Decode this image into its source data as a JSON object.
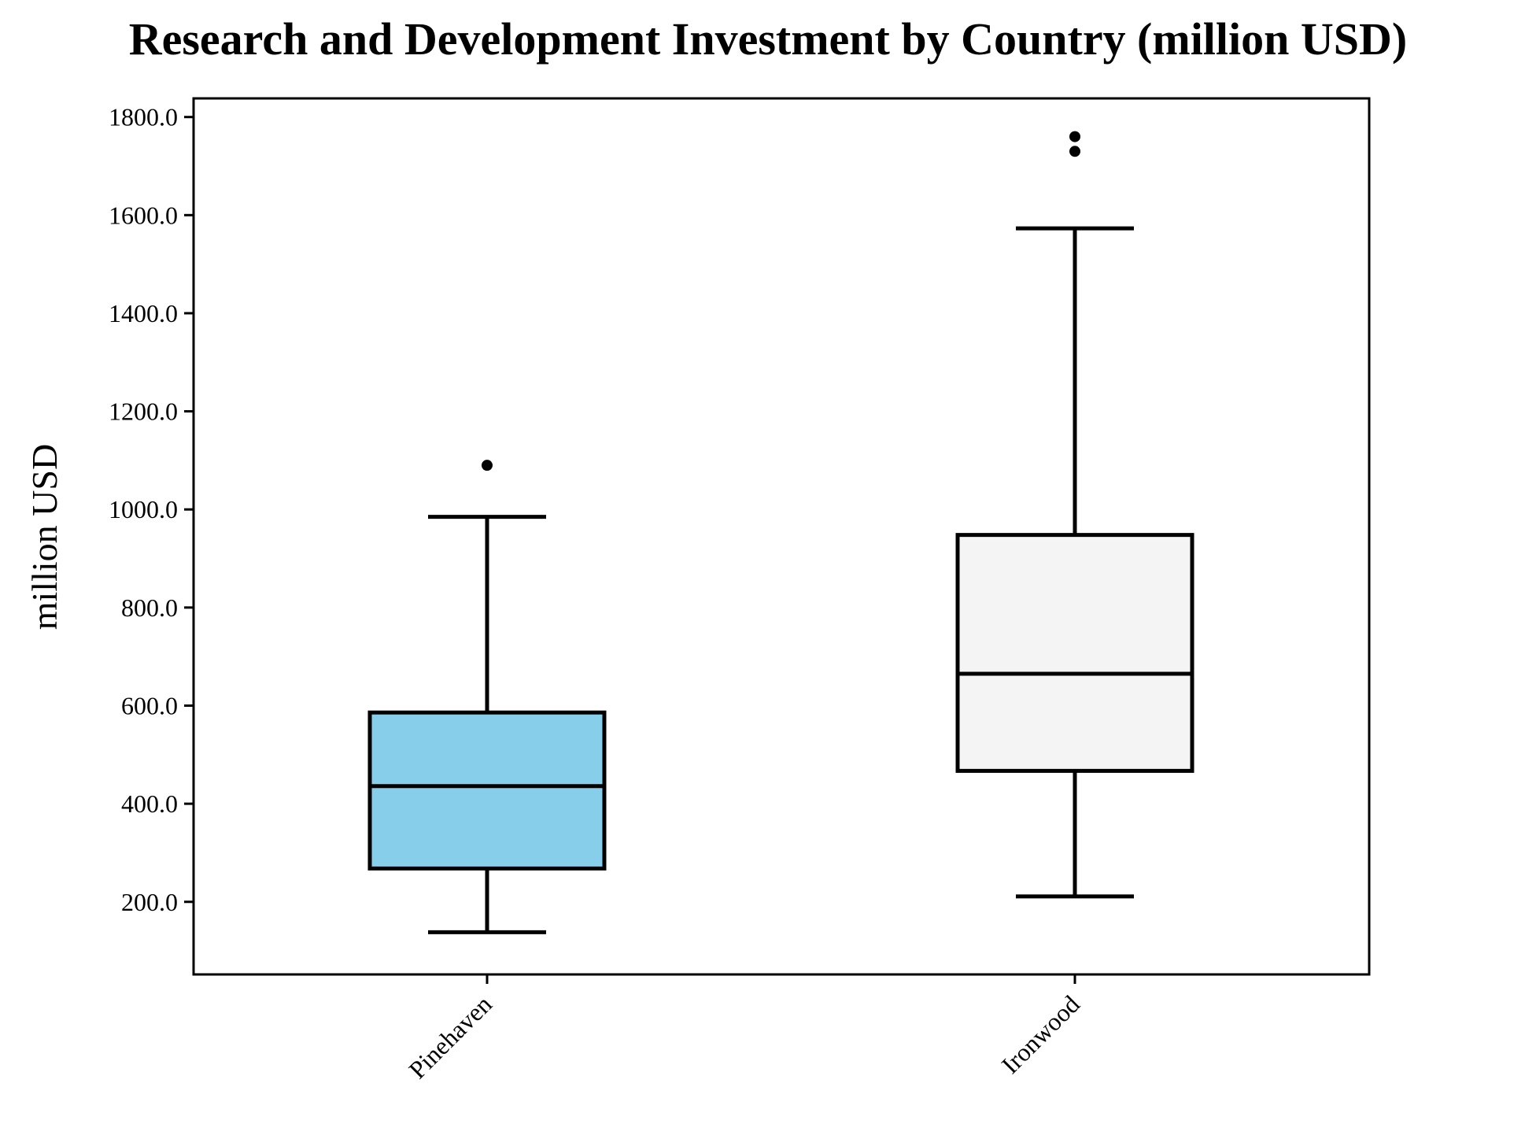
{
  "chart_data": {
    "type": "box",
    "title": "Research and Development Investment by Country (million USD)",
    "xlabel": "",
    "ylabel": "million USD",
    "ylim": [
      52,
      1838
    ],
    "yticks": [
      200,
      400,
      600,
      800,
      1000,
      1200,
      1400,
      1600,
      1800
    ],
    "ytick_labels": [
      "200.0",
      "400.0",
      "600.0",
      "800.0",
      "1000.0",
      "1200.0",
      "1400.0",
      "1600.0",
      "1800.0"
    ],
    "grid": false,
    "categories": [
      "Pinehaven",
      "Ironwood"
    ],
    "boxes": [
      {
        "category": "Pinehaven",
        "whisker_low": 138,
        "q1": 268,
        "median": 436,
        "q3": 586,
        "whisker_high": 985,
        "outliers": [
          1090
        ],
        "color": "#87CEEB"
      },
      {
        "category": "Ironwood",
        "whisker_low": 211,
        "q1": 467,
        "median": 665,
        "q3": 948,
        "whisker_high": 1573,
        "outliers": [
          1730,
          1760
        ],
        "color": "#F4F4F4"
      }
    ]
  }
}
